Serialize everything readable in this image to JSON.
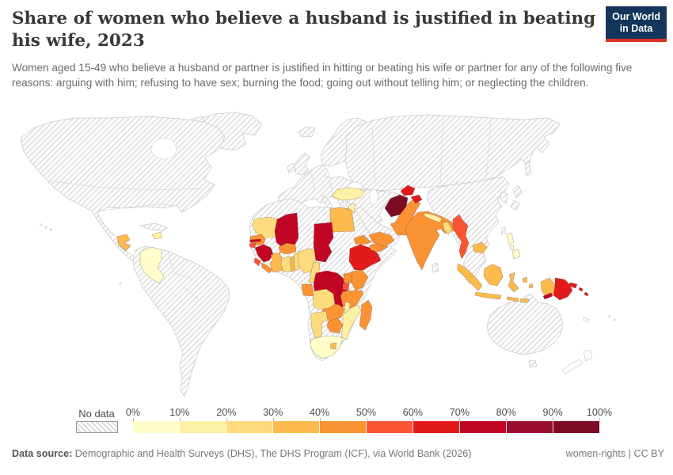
{
  "logo": {
    "line1": "Our World",
    "line2": "in Data"
  },
  "header": {
    "title": "Share of women who believe a husband is justified in beating his wife, 2023",
    "subtitle": "Women aged 15-49 who believe a husband or partner is justified in hitting or beating his wife or partner for any of the following five reasons: arguing with him; refusing to have sex; burning the food; going out without telling him; or neglecting the children."
  },
  "legend": {
    "no_data_label": "No data",
    "tick_labels": [
      "0%",
      "10%",
      "20%",
      "30%",
      "40%",
      "50%",
      "60%",
      "70%",
      "80%",
      "90%",
      "100%"
    ],
    "colors": [
      "#FFFECB",
      "#FEF0A4",
      "#FEDC7E",
      "#FDBA4D",
      "#FB9334",
      "#FB5435",
      "#E31A1C",
      "#C00624",
      "#9B0C31",
      "#7D0A23"
    ]
  },
  "footer": {
    "datasource_label": "Data source:",
    "datasource_text": " Demographic and Health Surveys (DHS), The DHS Program (ICF), via World Bank (2026)",
    "note": "women-rights | CC BY"
  },
  "chart_data": {
    "type": "heatmap",
    "subtype": "world-choropleth-map",
    "title": "Share of women who believe a husband is justified in beating his wife, 2023",
    "unit": "%",
    "legend_position": "bottom",
    "bins": [
      {
        "range": "0-10%",
        "color": "#FFFECB"
      },
      {
        "range": "10-20%",
        "color": "#FEF0A4"
      },
      {
        "range": "20-30%",
        "color": "#FEDC7E"
      },
      {
        "range": "30-40%",
        "color": "#FDBA4D"
      },
      {
        "range": "40-50%",
        "color": "#FB9334"
      },
      {
        "range": "50-60%",
        "color": "#FB5435"
      },
      {
        "range": "60-70%",
        "color": "#E31A1C"
      },
      {
        "range": "70-80%",
        "color": "#C00624"
      },
      {
        "range": "80-90%",
        "color": "#9B0C31"
      },
      {
        "range": "90-100%",
        "color": "#7D0A23"
      }
    ],
    "no_data_style": "gray-diagonal-hatch",
    "countries": [
      {
        "name": "Colombia",
        "range": "0-10%"
      },
      {
        "name": "South Africa",
        "range": "0-10%"
      },
      {
        "name": "Philippines",
        "range": "0-10%"
      },
      {
        "name": "Haiti",
        "range": "10-20%"
      },
      {
        "name": "Turkey",
        "range": "10-20%"
      },
      {
        "name": "Jordan",
        "range": "10-20%"
      },
      {
        "name": "Nepal",
        "range": "10-20%"
      },
      {
        "name": "Mozambique",
        "range": "10-20%"
      },
      {
        "name": "Malawi",
        "range": "10-20%"
      },
      {
        "name": "Mauritania",
        "range": "20-30%"
      },
      {
        "name": "Ghana",
        "range": "20-30%"
      },
      {
        "name": "Benin",
        "range": "20-30%"
      },
      {
        "name": "Nigeria",
        "range": "20-30%"
      },
      {
        "name": "Cameroon",
        "range": "20-30%"
      },
      {
        "name": "Angola",
        "range": "20-30%"
      },
      {
        "name": "Namibia",
        "range": "20-30%"
      },
      {
        "name": "Bangladesh",
        "range": "20-30%"
      },
      {
        "name": "Guatemala",
        "range": "30-40%"
      },
      {
        "name": "Egypt",
        "range": "30-40%"
      },
      {
        "name": "Cote d'Ivoire",
        "range": "30-40%"
      },
      {
        "name": "Togo",
        "range": "30-40%"
      },
      {
        "name": "Cambodia",
        "range": "30-40%"
      },
      {
        "name": "Indonesia",
        "range": "30-40%"
      },
      {
        "name": "Lesotho",
        "range": "30-40%"
      },
      {
        "name": "Senegal",
        "range": "40-50%"
      },
      {
        "name": "Liberia",
        "range": "40-50%"
      },
      {
        "name": "Burkina Faso",
        "range": "40-50%"
      },
      {
        "name": "Gabon",
        "range": "40-50%"
      },
      {
        "name": "Kenya",
        "range": "40-50%"
      },
      {
        "name": "Uganda",
        "range": "40-50%"
      },
      {
        "name": "Tanzania",
        "range": "40-50%"
      },
      {
        "name": "Eritrea",
        "range": "40-50%"
      },
      {
        "name": "Somaliland",
        "range": "40-50%"
      },
      {
        "name": "Yemen",
        "range": "40-50%"
      },
      {
        "name": "Zambia",
        "range": "40-50%"
      },
      {
        "name": "Zimbabwe",
        "range": "40-50%"
      },
      {
        "name": "Madagascar",
        "range": "40-50%"
      },
      {
        "name": "Pakistan",
        "range": "40-50%"
      },
      {
        "name": "India",
        "range": "40-50%"
      },
      {
        "name": "Guinea-Bissau",
        "range": "50-60%"
      },
      {
        "name": "Sierra Leone",
        "range": "50-60%"
      },
      {
        "name": "Rwanda",
        "range": "50-60%"
      },
      {
        "name": "Myanmar",
        "range": "50-60%"
      },
      {
        "name": "Ethiopia",
        "range": "60-70%"
      },
      {
        "name": "Tajikistan",
        "range": "60-70%"
      },
      {
        "name": "Kashmir region",
        "range": "60-70%"
      },
      {
        "name": "Papua New Guinea",
        "range": "60-70%"
      },
      {
        "name": "Solomon Islands",
        "range": "60-70%"
      },
      {
        "name": "Timor-Leste",
        "range": "70-80%"
      },
      {
        "name": "Gambia",
        "range": "70-80%"
      },
      {
        "name": "Guinea",
        "range": "70-80%"
      },
      {
        "name": "Mali",
        "range": "70-80%"
      },
      {
        "name": "Chad",
        "range": "70-80%"
      },
      {
        "name": "Democratic Republic of Congo",
        "range": "70-80%"
      },
      {
        "name": "Afghanistan",
        "range": "90-100%"
      }
    ]
  }
}
